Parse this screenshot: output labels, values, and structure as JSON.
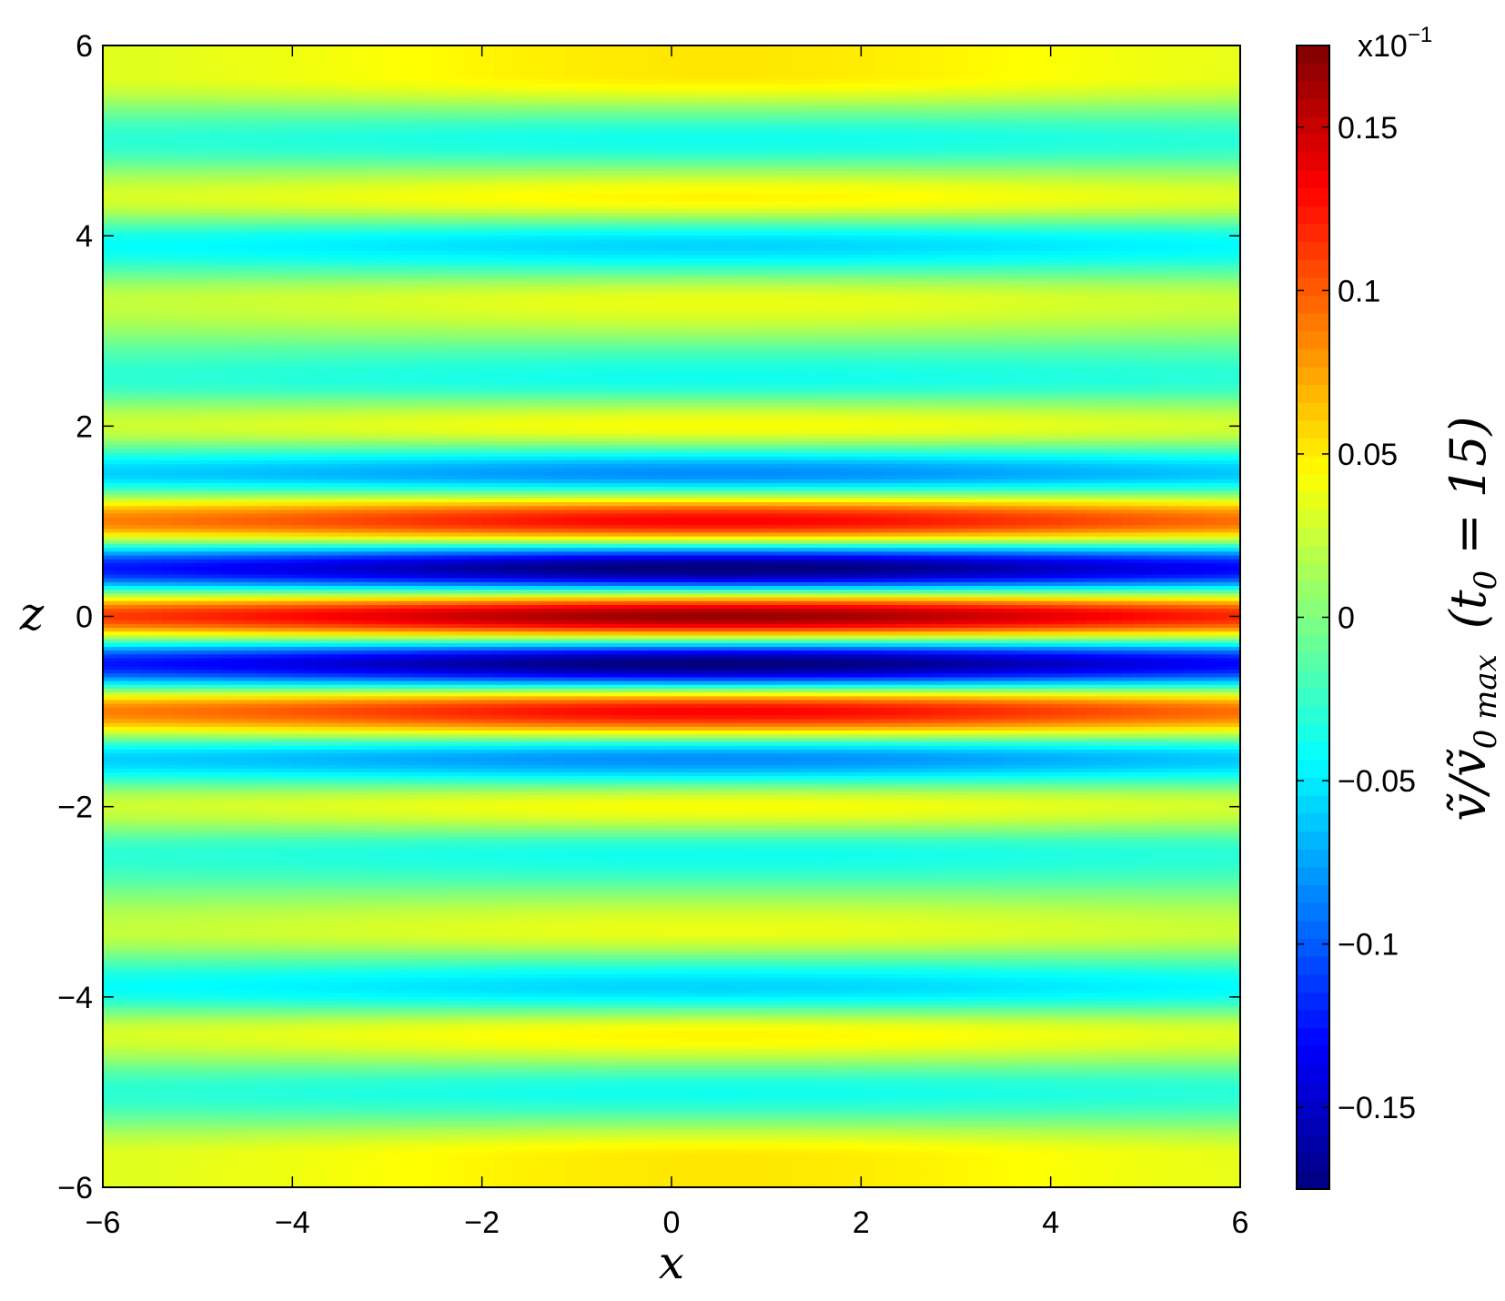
{
  "chart_data": {
    "type": "heatmap",
    "xlabel": "x",
    "ylabel": "z",
    "xlim": [
      -6,
      6
    ],
    "ylim": [
      -6,
      6
    ],
    "x_ticks": [
      -6,
      -4,
      -2,
      0,
      2,
      4,
      6
    ],
    "x_tick_labels": [
      "−6",
      "−4",
      "−2",
      "0",
      "2",
      "4",
      "6"
    ],
    "y_ticks": [
      -6,
      -4,
      -2,
      0,
      2,
      4,
      6
    ],
    "y_tick_labels": [
      "−6",
      "−4",
      "−2",
      "0",
      "2",
      "4",
      "6"
    ],
    "colormap": "jet",
    "grid": false,
    "colorbar": {
      "label": "ṽ/ṽ₀ max (t₀ = 15)",
      "label_parts": {
        "var": "ṽ/ṽ",
        "sub": "0 max",
        "paren_open": "(t",
        "paren_sub": "0",
        "paren_close": " = 15)"
      },
      "multiplier_base": "x10",
      "multiplier_exp": "−1",
      "clim": [
        -0.175,
        0.175
      ],
      "ticks": [
        0.15,
        0.1,
        0.05,
        0,
        -0.05,
        -0.1,
        -0.15
      ],
      "tick_labels": [
        "0.15",
        "0.1",
        "0.05",
        "0",
        "−0.05",
        "−0.1",
        "−0.15"
      ]
    },
    "field_profile": {
      "description_z": "horizontal banded pattern symmetric in z, amplitude peaked near x=0.5",
      "z": [
        0.0,
        0.5,
        1.0,
        1.5,
        2.0,
        2.5,
        3.3,
        3.9,
        4.4,
        5.0,
        5.7
      ],
      "amplitude": [
        0.175,
        -0.17,
        0.14,
        -0.075,
        0.05,
        -0.03,
        0.045,
        -0.05,
        0.055,
        -0.03,
        0.06
      ],
      "x_center": 0.5,
      "x_half_width": 4.5
    }
  }
}
